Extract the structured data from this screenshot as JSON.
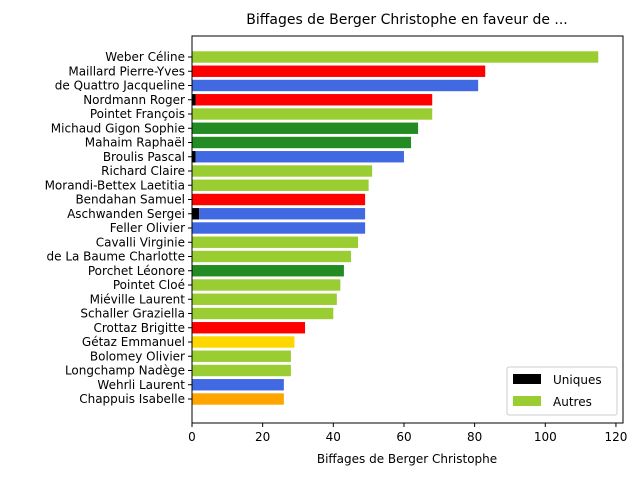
{
  "chart_data": {
    "type": "bar",
    "orientation": "horizontal",
    "stacked": true,
    "title": "Biffages de Berger Christophe en faveur de ...",
    "xlabel": "Biffages de Berger Christophe",
    "ylabel": "",
    "xlim": [
      0,
      122
    ],
    "xticks": [
      0,
      20,
      40,
      60,
      80,
      100,
      120
    ],
    "grid": false,
    "legend": {
      "placement": "lower-right",
      "entries": [
        {
          "label": "Uniques",
          "color": "#000000"
        },
        {
          "label": "Autres",
          "color": "#9acd32"
        }
      ]
    },
    "categories": [
      "Weber Céline",
      "Maillard Pierre-Yves",
      "de Quattro Jacqueline",
      "Nordmann Roger",
      "Pointet François",
      "Michaud Gigon Sophie",
      "Mahaim Raphaël",
      "Broulis Pascal",
      "Richard Claire",
      "Morandi-Bettex Laetitia",
      "Bendahan Samuel",
      "Aschwanden Sergei",
      "Feller Olivier",
      "Cavalli Virginie",
      "de La Baume Charlotte",
      "Porchet Léonore",
      "Pointet Cloé",
      "Miéville Laurent",
      "Schaller Graziella",
      "Crottaz Brigitte",
      "Gétaz Emmanuel",
      "Bolomey Olivier",
      "Longchamp Nadège",
      "Wehrli Laurent",
      "Chappuis Isabelle"
    ],
    "series": [
      {
        "name": "Uniques",
        "values": [
          0,
          0,
          0,
          1,
          0,
          0,
          0,
          1,
          0,
          0,
          0,
          2,
          0,
          0,
          0,
          0,
          0,
          0,
          0,
          0,
          0,
          0,
          0,
          0,
          0
        ]
      },
      {
        "name": "Autres",
        "values": [
          115,
          83,
          81,
          67,
          68,
          64,
          62,
          59,
          51,
          50,
          49,
          47,
          49,
          47,
          45,
          43,
          42,
          41,
          40,
          32,
          29,
          28,
          28,
          26,
          26
        ]
      }
    ],
    "bar_colors": [
      "#9acd32",
      "#ff0000",
      "#4169e1",
      "#ff0000",
      "#9acd32",
      "#228b22",
      "#228b22",
      "#4169e1",
      "#9acd32",
      "#9acd32",
      "#ff0000",
      "#4169e1",
      "#4169e1",
      "#9acd32",
      "#9acd32",
      "#228b22",
      "#9acd32",
      "#9acd32",
      "#9acd32",
      "#ff0000",
      "#ffd700",
      "#9acd32",
      "#9acd32",
      "#4169e1",
      "#ffa500"
    ],
    "unique_color": "#000000"
  }
}
